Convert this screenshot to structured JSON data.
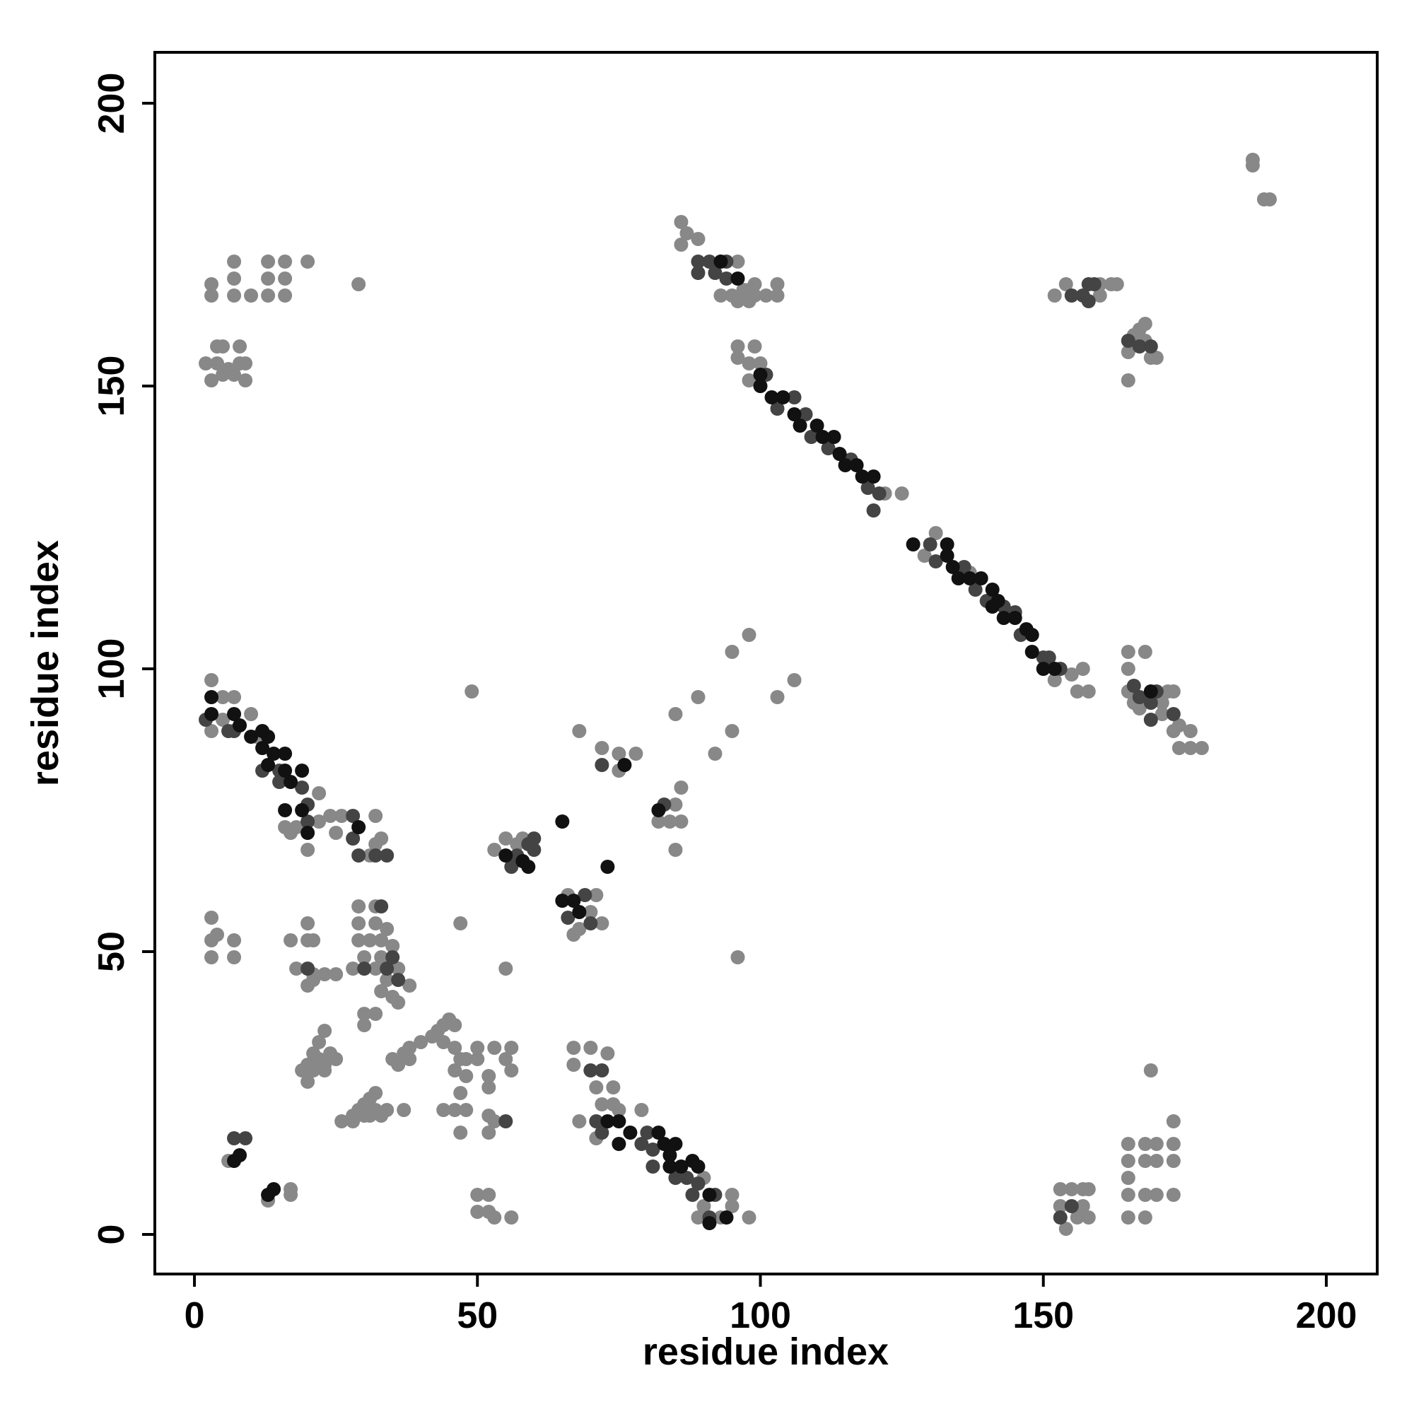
{
  "chart_data": {
    "type": "scatter",
    "xlabel": "residue index",
    "ylabel": "residue index",
    "xlim": [
      -7,
      209
    ],
    "ylim": [
      -7,
      209
    ],
    "xticks": [
      0,
      50,
      100,
      150,
      200
    ],
    "yticks": [
      0,
      50,
      100,
      150,
      200
    ],
    "series": [
      {
        "color": "#888888",
        "x": [
          122,
          125,
          131,
          129,
          137,
          155,
          157,
          152,
          156,
          158,
          87,
          86,
          86,
          89,
          96,
          97,
          95,
          93,
          98,
          99,
          101,
          103,
          103,
          96,
          98,
          99,
          96,
          99,
          96,
          98,
          100,
          98,
          4,
          2,
          4,
          5,
          5,
          3,
          6,
          8,
          8,
          7,
          9,
          9,
          3,
          3,
          7,
          7,
          7,
          10,
          13,
          13,
          13,
          16,
          16,
          16,
          20,
          29,
          187,
          187,
          190,
          189,
          152,
          154,
          160,
          160,
          162,
          163,
          165,
          165,
          166,
          168,
          168,
          169,
          170,
          167,
          165,
          168,
          165,
          165,
          171,
          172,
          173,
          171,
          173,
          174,
          176,
          176,
          178,
          174,
          167,
          166,
          153,
          153,
          155,
          154,
          157,
          157,
          158,
          158,
          156,
          165,
          168,
          165,
          168,
          170,
          173,
          165,
          165,
          165,
          168,
          170,
          173,
          168,
          170,
          173,
          173,
          169,
          3,
          5,
          7,
          3,
          5,
          10,
          11,
          17,
          16,
          18,
          22,
          22,
          24,
          26,
          25,
          32,
          32,
          33,
          31,
          20,
          67,
          70,
          67,
          73,
          71,
          74,
          74,
          72,
          75,
          79,
          68,
          71,
          90,
          90,
          89,
          93,
          95,
          95,
          98,
          6,
          13,
          17,
          17,
          20,
          21,
          22,
          23,
          22,
          24,
          25,
          20,
          21,
          23,
          19,
          23,
          26,
          28,
          29,
          30,
          31,
          30,
          32,
          33,
          34,
          37,
          28,
          32,
          31,
          35,
          37,
          38,
          40,
          42,
          43,
          44,
          45,
          46,
          44,
          46,
          47,
          46,
          48,
          48,
          47,
          46,
          48,
          44,
          47,
          50,
          50,
          53,
          56,
          55,
          56,
          52,
          52,
          52,
          53,
          52,
          50,
          50,
          52,
          52,
          53,
          56,
          29,
          32,
          29,
          32,
          29,
          31,
          33,
          34,
          35,
          30,
          33,
          28,
          32,
          36,
          34,
          38,
          33,
          35,
          36,
          30,
          32,
          30,
          25,
          23,
          21,
          21,
          18,
          17,
          20,
          21,
          20,
          3,
          3,
          4,
          3,
          7,
          7,
          38,
          36,
          20,
          53,
          55,
          57,
          58,
          68,
          67,
          70,
          71,
          72,
          66,
          55,
          47,
          49,
          68,
          72,
          75,
          75,
          78,
          84,
          82,
          85,
          86,
          86,
          85,
          85,
          89,
          92,
          95,
          96,
          95,
          98,
          103,
          106
        ],
        "values": [
          131,
          131,
          124,
          120,
          117,
          99,
          100,
          98,
          96,
          96,
          177,
          179,
          175,
          176,
          172,
          167,
          166,
          166,
          167,
          166,
          166,
          166,
          168,
          165,
          165,
          168,
          157,
          157,
          155,
          154,
          154,
          151,
          154,
          154,
          157,
          157,
          152,
          151,
          153,
          157,
          154,
          152,
          151,
          154,
          166,
          168,
          166,
          169,
          172,
          166,
          166,
          169,
          172,
          166,
          169,
          172,
          172,
          168,
          190,
          189,
          183,
          183,
          166,
          168,
          166,
          168,
          168,
          168,
          156,
          151,
          159,
          158,
          161,
          155,
          155,
          160,
          103,
          103,
          100,
          96,
          94,
          96,
          96,
          92,
          89,
          90,
          89,
          86,
          86,
          86,
          93,
          94,
          8,
          5,
          8,
          1,
          8,
          5,
          8,
          3,
          3,
          3,
          3,
          7,
          7,
          7,
          7,
          10,
          13,
          16,
          13,
          13,
          13,
          16,
          16,
          16,
          20,
          29,
          98,
          95,
          95,
          89,
          91,
          92,
          88,
          71,
          72,
          72,
          73,
          78,
          74,
          74,
          71,
          74,
          69,
          70,
          67,
          68,
          33,
          33,
          30,
          32,
          26,
          26,
          23,
          23,
          22,
          22,
          20,
          17,
          10,
          5,
          3,
          3,
          5,
          7,
          3,
          13,
          6,
          8,
          7,
          30,
          32,
          34,
          36,
          31,
          32,
          31,
          27,
          29,
          29,
          29,
          30,
          20,
          21,
          22,
          23,
          24,
          21,
          22,
          21,
          22,
          22,
          20,
          25,
          21,
          31,
          32,
          33,
          34,
          35,
          36,
          37,
          38,
          37,
          34,
          33,
          31,
          29,
          31,
          28,
          25,
          22,
          22,
          22,
          18,
          33,
          31,
          33,
          33,
          31,
          29,
          28,
          26,
          21,
          20,
          18,
          7,
          4,
          7,
          4,
          3,
          3,
          58,
          58,
          55,
          55,
          52,
          52,
          52,
          54,
          51,
          49,
          49,
          47,
          47,
          47,
          45,
          44,
          43,
          42,
          41,
          39,
          39,
          37,
          46,
          46,
          46,
          45,
          47,
          52,
          52,
          52,
          55,
          49,
          52,
          53,
          56,
          49,
          52,
          31,
          30,
          44,
          68,
          70,
          69,
          70,
          54,
          53,
          57,
          60,
          55,
          60,
          47,
          55,
          96,
          89,
          86,
          85,
          82,
          85,
          73,
          73,
          76,
          73,
          79,
          68,
          92,
          95,
          85,
          89,
          49,
          103,
          106,
          95,
          98
        ]
      },
      {
        "color": "#444444",
        "x": [
          106,
          103,
          108,
          109,
          112,
          116,
          119,
          121,
          120,
          130,
          131,
          136,
          138,
          140,
          143,
          145,
          146,
          150,
          151,
          153,
          89,
          91,
          94,
          89,
          92,
          94,
          101,
          155,
          157,
          158,
          159,
          158,
          165,
          167,
          169,
          166,
          167,
          169,
          170,
          169,
          173,
          153,
          155,
          2,
          6,
          7,
          12,
          15,
          15,
          19,
          20,
          20,
          28,
          28,
          29,
          34,
          32,
          70,
          72,
          71,
          72,
          80,
          79,
          81,
          81,
          85,
          87,
          88,
          89,
          92,
          91,
          7,
          9,
          55,
          33,
          35,
          30,
          34,
          36,
          20,
          57,
          59,
          60,
          60,
          56,
          66,
          69,
          70,
          72,
          83
        ],
        "values": [
          148,
          146,
          145,
          141,
          139,
          137,
          132,
          131,
          128,
          122,
          119,
          118,
          114,
          112,
          111,
          110,
          106,
          102,
          102,
          100,
          172,
          172,
          172,
          170,
          170,
          169,
          152,
          166,
          166,
          168,
          168,
          165,
          158,
          157,
          157,
          97,
          95,
          94,
          96,
          91,
          92,
          3,
          5,
          91,
          89,
          89,
          82,
          82,
          80,
          79,
          76,
          73,
          74,
          70,
          67,
          67,
          67,
          29,
          29,
          20,
          18,
          18,
          16,
          15,
          12,
          10,
          10,
          7,
          9,
          7,
          3,
          17,
          17,
          20,
          58,
          49,
          47,
          47,
          45,
          47,
          67,
          69,
          68,
          70,
          65,
          56,
          60,
          55,
          83,
          76
        ]
      },
      {
        "color": "#111111",
        "x": [
          100,
          100,
          102,
          104,
          106,
          107,
          110,
          111,
          113,
          114,
          115,
          117,
          118,
          120,
          127,
          133,
          133,
          134,
          135,
          137,
          139,
          141,
          142,
          141,
          143,
          145,
          147,
          148,
          148,
          150,
          152,
          93,
          96,
          169,
          3,
          3,
          7,
          8,
          10,
          12,
          12,
          13,
          14,
          13,
          16,
          16,
          17,
          19,
          16,
          19,
          20,
          29,
          73,
          75,
          75,
          77,
          82,
          83,
          84,
          85,
          84,
          86,
          88,
          89,
          91,
          91,
          94,
          7,
          8,
          13,
          14,
          55,
          58,
          59,
          65,
          67,
          68,
          65,
          73,
          76,
          82
        ],
        "values": [
          152,
          150,
          148,
          148,
          145,
          143,
          143,
          141,
          141,
          138,
          136,
          136,
          134,
          134,
          122,
          122,
          120,
          118,
          116,
          116,
          116,
          114,
          112,
          111,
          109,
          109,
          107,
          106,
          103,
          100,
          100,
          172,
          169,
          96,
          95,
          92,
          92,
          90,
          88,
          86,
          89,
          88,
          85,
          83,
          85,
          82,
          80,
          82,
          75,
          75,
          71,
          72,
          20,
          20,
          16,
          18,
          18,
          16,
          14,
          16,
          12,
          12,
          13,
          12,
          7,
          2,
          3,
          13,
          14,
          7,
          8,
          67,
          66,
          65,
          59,
          59,
          57,
          73,
          65,
          83,
          75
        ]
      }
    ]
  }
}
